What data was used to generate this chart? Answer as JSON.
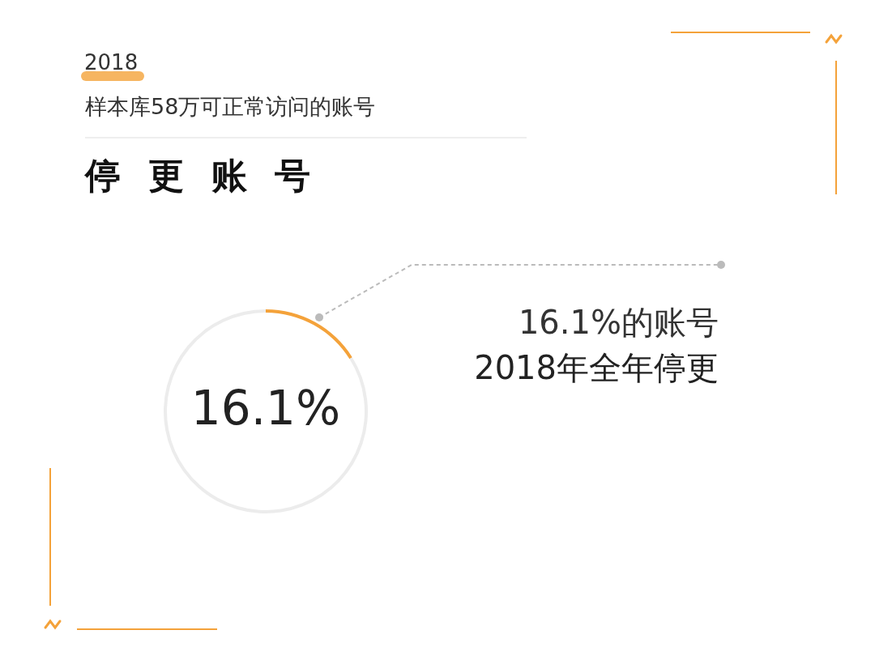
{
  "chart_data": {
    "type": "donut",
    "title": "停更账号",
    "subtitle": "样本库58万可正常访问的账号",
    "categories": [
      null,
      null
    ],
    "values": [
      16.1,
      83.9
    ],
    "colors": [
      "#f4a23a",
      "#ececec"
    ],
    "annotations": [
      "2018",
      "16.1%的账号",
      "2018年全年停更",
      "16.1%"
    ]
  }
}
